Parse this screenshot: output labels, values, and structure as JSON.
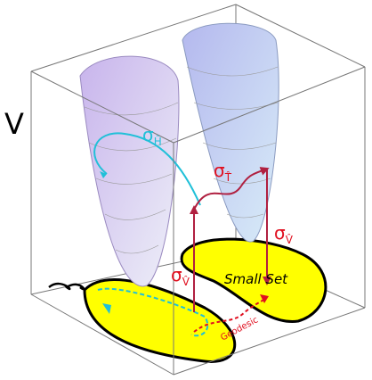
{
  "axis_label": "V",
  "labels": {
    "sigma_h": {
      "symbol": "σ",
      "subscript": "Ĥ"
    },
    "sigma_t": {
      "symbol": "σ",
      "subscript": "T̂"
    },
    "sigma_v_right": {
      "symbol": "σ",
      "subscript": "V̂"
    },
    "sigma_v_left": {
      "symbol": "σ",
      "subscript": "V̂"
    }
  },
  "small_set": "Small Set",
  "geodesic": "Geodesic"
}
